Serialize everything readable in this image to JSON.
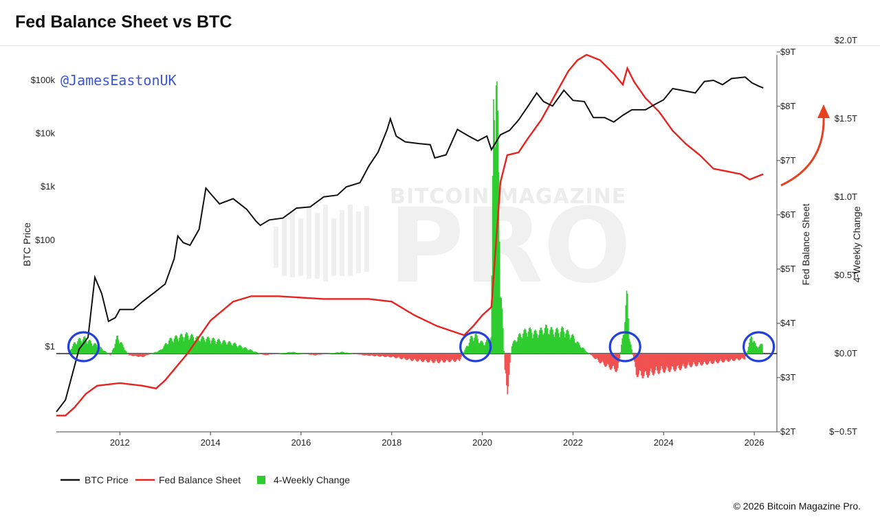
{
  "page": {
    "title": "Fed Balance Sheet vs BTC",
    "copyright": "© 2026 Bitcoin Magazine Pro.",
    "annotation_handle": "@JamesEastonUK",
    "watermark_top": "BITCOIN MAGAZINE",
    "watermark_main": "PRO"
  },
  "colors": {
    "btc": "#111111",
    "fed": "#e8231f",
    "change_pos": "#2ecc2e",
    "change_neg": "#f05050",
    "circle": "#2341d9",
    "arrow": "#e8411f"
  },
  "chart_data": {
    "type": "line",
    "x_range": [
      2010.6,
      2026.5
    ],
    "x_ticks": [
      "2012",
      "2014",
      "2016",
      "2018",
      "2020",
      "2022",
      "2024",
      "2026"
    ],
    "left_axis": {
      "label": "BTC Price",
      "scale": "log",
      "ticks": [
        "$1",
        "$100",
        "$1k",
        "$10k",
        "$100k"
      ],
      "tick_values": [
        1,
        100,
        1000,
        10000,
        100000
      ]
    },
    "right_axis_1": {
      "label": "Fed Balance Sheet",
      "ticks": [
        "$2T",
        "$3T",
        "$4T",
        "$5T",
        "$6T",
        "$7T",
        "$8T",
        "$9T"
      ],
      "range": [
        2,
        9.25
      ]
    },
    "right_axis_2": {
      "label": "4-Weekly Change",
      "ticks": [
        "$−0.5T",
        "$0.0T",
        "$0.5T",
        "$1.0T",
        "$1.5T",
        "$2.0T"
      ],
      "range": [
        -0.5,
        2.0
      ]
    },
    "legend": [
      "BTC Price",
      "Fed Balance Sheet",
      "4-Weekly Change"
    ],
    "legend_position": "bottom-left",
    "series": [
      {
        "name": "BTC Price",
        "axis": "left",
        "points": [
          [
            2010.6,
            0.06
          ],
          [
            2010.8,
            0.1
          ],
          [
            2010.95,
            0.3
          ],
          [
            2011.1,
            0.9
          ],
          [
            2011.3,
            1.5
          ],
          [
            2011.45,
            20
          ],
          [
            2011.6,
            10
          ],
          [
            2011.75,
            3
          ],
          [
            2011.9,
            3.5
          ],
          [
            2012.0,
            5
          ],
          [
            2012.3,
            5
          ],
          [
            2012.5,
            7
          ],
          [
            2012.8,
            11
          ],
          [
            2013.0,
            15
          ],
          [
            2013.2,
            45
          ],
          [
            2013.28,
            120
          ],
          [
            2013.4,
            90
          ],
          [
            2013.55,
            80
          ],
          [
            2013.75,
            160
          ],
          [
            2013.9,
            950
          ],
          [
            2014.0,
            750
          ],
          [
            2014.2,
            480
          ],
          [
            2014.5,
            600
          ],
          [
            2014.8,
            380
          ],
          [
            2015.0,
            230
          ],
          [
            2015.1,
            190
          ],
          [
            2015.3,
            240
          ],
          [
            2015.6,
            260
          ],
          [
            2015.9,
            400
          ],
          [
            2016.2,
            420
          ],
          [
            2016.5,
            650
          ],
          [
            2016.8,
            700
          ],
          [
            2017.0,
            1000
          ],
          [
            2017.3,
            1200
          ],
          [
            2017.5,
            2500
          ],
          [
            2017.7,
            4500
          ],
          [
            2017.9,
            12000
          ],
          [
            2017.97,
            19000
          ],
          [
            2018.1,
            9000
          ],
          [
            2018.3,
            7000
          ],
          [
            2018.6,
            6500
          ],
          [
            2018.85,
            6200
          ],
          [
            2018.95,
            3500
          ],
          [
            2019.2,
            4000
          ],
          [
            2019.45,
            12000
          ],
          [
            2019.7,
            9000
          ],
          [
            2019.9,
            7300
          ],
          [
            2020.1,
            9000
          ],
          [
            2020.2,
            5000
          ],
          [
            2020.4,
            9500
          ],
          [
            2020.6,
            11500
          ],
          [
            2020.8,
            18000
          ],
          [
            2021.0,
            32000
          ],
          [
            2021.2,
            58000
          ],
          [
            2021.35,
            40000
          ],
          [
            2021.55,
            33000
          ],
          [
            2021.8,
            65000
          ],
          [
            2022.0,
            42000
          ],
          [
            2022.25,
            40000
          ],
          [
            2022.45,
            20000
          ],
          [
            2022.7,
            20000
          ],
          [
            2022.9,
            16500
          ],
          [
            2023.1,
            22000
          ],
          [
            2023.3,
            28000
          ],
          [
            2023.6,
            28000
          ],
          [
            2023.8,
            35000
          ],
          [
            2024.0,
            43000
          ],
          [
            2024.2,
            70000
          ],
          [
            2024.4,
            65000
          ],
          [
            2024.7,
            58000
          ],
          [
            2024.9,
            95000
          ],
          [
            2025.1,
            100000
          ],
          [
            2025.3,
            83000
          ],
          [
            2025.5,
            108000
          ],
          [
            2025.8,
            115000
          ],
          [
            2025.95,
            90000
          ],
          [
            2026.1,
            78000
          ],
          [
            2026.2,
            72000
          ]
        ]
      },
      {
        "name": "Fed Balance Sheet",
        "axis": "right_1",
        "points": [
          [
            2010.6,
            2.3
          ],
          [
            2010.8,
            2.3
          ],
          [
            2011.0,
            2.45
          ],
          [
            2011.25,
            2.7
          ],
          [
            2011.5,
            2.85
          ],
          [
            2012.0,
            2.9
          ],
          [
            2012.5,
            2.85
          ],
          [
            2012.8,
            2.8
          ],
          [
            2013.0,
            2.95
          ],
          [
            2013.5,
            3.45
          ],
          [
            2014.0,
            4.05
          ],
          [
            2014.5,
            4.4
          ],
          [
            2014.9,
            4.5
          ],
          [
            2015.5,
            4.5
          ],
          [
            2016.5,
            4.45
          ],
          [
            2017.5,
            4.45
          ],
          [
            2018.0,
            4.4
          ],
          [
            2018.5,
            4.15
          ],
          [
            2019.0,
            3.95
          ],
          [
            2019.6,
            3.78
          ],
          [
            2019.8,
            3.95
          ],
          [
            2020.0,
            4.15
          ],
          [
            2020.2,
            4.3
          ],
          [
            2020.4,
            6.6
          ],
          [
            2020.55,
            7.1
          ],
          [
            2020.8,
            7.15
          ],
          [
            2021.0,
            7.4
          ],
          [
            2021.3,
            7.75
          ],
          [
            2021.6,
            8.2
          ],
          [
            2021.9,
            8.65
          ],
          [
            2022.1,
            8.85
          ],
          [
            2022.3,
            8.95
          ],
          [
            2022.6,
            8.85
          ],
          [
            2022.9,
            8.6
          ],
          [
            2023.1,
            8.4
          ],
          [
            2023.2,
            8.7
          ],
          [
            2023.35,
            8.45
          ],
          [
            2023.6,
            8.15
          ],
          [
            2023.9,
            7.9
          ],
          [
            2024.2,
            7.55
          ],
          [
            2024.5,
            7.3
          ],
          [
            2024.8,
            7.1
          ],
          [
            2025.1,
            6.85
          ],
          [
            2025.4,
            6.8
          ],
          [
            2025.7,
            6.75
          ],
          [
            2025.9,
            6.65
          ],
          [
            2026.05,
            6.7
          ],
          [
            2026.2,
            6.75
          ]
        ]
      },
      {
        "name": "4-Weekly Change",
        "axis": "right_2",
        "type": "bar",
        "points": [
          [
            2010.9,
            0.02
          ],
          [
            2011.0,
            0.06
          ],
          [
            2011.1,
            0.08
          ],
          [
            2011.2,
            0.09
          ],
          [
            2011.3,
            0.08
          ],
          [
            2011.4,
            0.06
          ],
          [
            2011.5,
            0.05
          ],
          [
            2011.6,
            0.03
          ],
          [
            2011.8,
            -0.01
          ],
          [
            2011.95,
            0.1
          ],
          [
            2012.2,
            -0.01
          ],
          [
            2012.5,
            -0.02
          ],
          [
            2012.9,
            0.02
          ],
          [
            2013.1,
            0.08
          ],
          [
            2013.3,
            0.1
          ],
          [
            2013.5,
            0.11
          ],
          [
            2013.7,
            0.09
          ],
          [
            2013.9,
            0.09
          ],
          [
            2014.1,
            0.08
          ],
          [
            2014.3,
            0.07
          ],
          [
            2014.5,
            0.06
          ],
          [
            2014.7,
            0.04
          ],
          [
            2014.9,
            0.02
          ],
          [
            2015.2,
            -0.01
          ],
          [
            2015.8,
            0.01
          ],
          [
            2016.3,
            -0.01
          ],
          [
            2016.9,
            0.01
          ],
          [
            2017.4,
            -0.01
          ],
          [
            2018.0,
            -0.02
          ],
          [
            2018.5,
            -0.04
          ],
          [
            2019.0,
            -0.05
          ],
          [
            2019.5,
            -0.04
          ],
          [
            2019.75,
            0.09
          ],
          [
            2019.85,
            0.11
          ],
          [
            2019.95,
            0.07
          ],
          [
            2020.05,
            0.06
          ],
          [
            2020.2,
            0.1
          ],
          [
            2020.25,
            1.4
          ],
          [
            2020.3,
            1.77
          ],
          [
            2020.35,
            1.2
          ],
          [
            2020.4,
            0.5
          ],
          [
            2020.45,
            0.2
          ],
          [
            2020.5,
            -0.1
          ],
          [
            2020.55,
            -0.25
          ],
          [
            2020.65,
            0.05
          ],
          [
            2020.8,
            0.1
          ],
          [
            2021.0,
            0.14
          ],
          [
            2021.2,
            0.12
          ],
          [
            2021.4,
            0.15
          ],
          [
            2021.6,
            0.13
          ],
          [
            2021.8,
            0.14
          ],
          [
            2022.0,
            0.1
          ],
          [
            2022.15,
            0.05
          ],
          [
            2022.4,
            -0.01
          ],
          [
            2022.6,
            -0.05
          ],
          [
            2022.8,
            -0.08
          ],
          [
            2023.0,
            -0.1
          ],
          [
            2023.15,
            0.2
          ],
          [
            2023.2,
            0.36
          ],
          [
            2023.25,
            0.1
          ],
          [
            2023.4,
            -0.12
          ],
          [
            2023.6,
            -0.13
          ],
          [
            2023.8,
            -0.11
          ],
          [
            2024.0,
            -0.1
          ],
          [
            2024.3,
            -0.09
          ],
          [
            2024.6,
            -0.07
          ],
          [
            2024.9,
            -0.06
          ],
          [
            2025.2,
            -0.05
          ],
          [
            2025.5,
            -0.04
          ],
          [
            2025.8,
            -0.03
          ],
          [
            2025.95,
            0.11
          ],
          [
            2026.05,
            0.04
          ],
          [
            2026.15,
            0.05
          ],
          [
            2026.2,
            0.06
          ]
        ]
      }
    ],
    "highlight_circles_x": [
      2011.2,
      2019.85,
      2023.15,
      2026.1
    ]
  }
}
